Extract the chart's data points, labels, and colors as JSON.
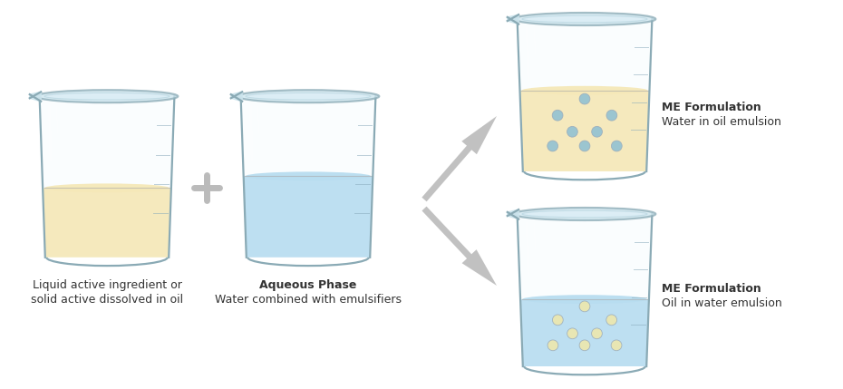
{
  "bg_color": "#ffffff",
  "beaker1": {
    "label1": "Liquid active ingredient or",
    "label2": "solid active dissolved in oil",
    "liquid_color": "#f5e8b8",
    "dot_color": null
  },
  "beaker2": {
    "label_bold": "Aqueous Phase",
    "label2": "Water combined with emulsifiers",
    "liquid_color": "#b8ddf0",
    "dot_color": null
  },
  "beaker3": {
    "label_bold": "ME Formulation",
    "label2": "Water in oil emulsion",
    "liquid_color": "#f5e8b8",
    "dot_color": "#8bbfd4"
  },
  "beaker4": {
    "label_bold": "ME Formulation",
    "label2": "Oil in water emulsion",
    "liquid_color": "#b8ddf0",
    "dot_color": "#f0e8a8"
  },
  "text_color": "#333333",
  "plus_color": "#bbbbbb",
  "arrow_color": "#aaaaaa",
  "outline_color": "#8aaab5",
  "rim_color": "#9bbac5",
  "glass_highlight": "#ddeef5"
}
